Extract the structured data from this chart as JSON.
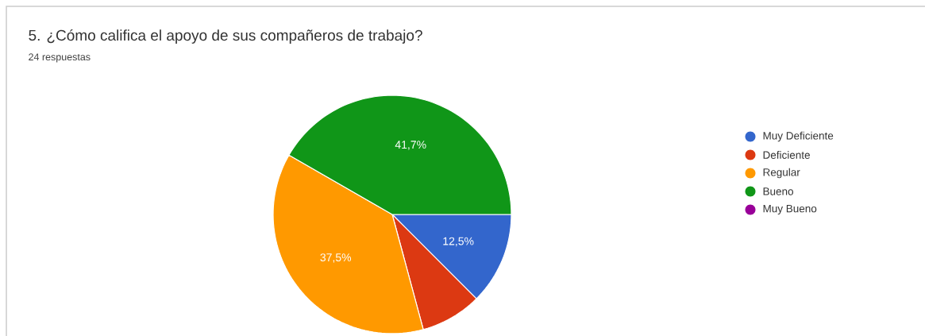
{
  "chart_data": {
    "type": "pie",
    "title": "5.  ¿Cómo califica el apoyo de sus compañeros de trabajo?",
    "subtitle": "24 respuestas",
    "categories": [
      "Muy Deficiente",
      "Deficiente",
      "Regular",
      "Bueno",
      "Muy Bueno"
    ],
    "values": [
      12.5,
      8.3,
      37.5,
      41.7,
      0
    ],
    "colors": [
      "#3366cc",
      "#dc3912",
      "#ff9900",
      "#109618",
      "#990099"
    ],
    "value_labels": [
      "12,5%",
      null,
      "37,5%",
      "41,7%",
      null
    ],
    "legend": "right"
  }
}
